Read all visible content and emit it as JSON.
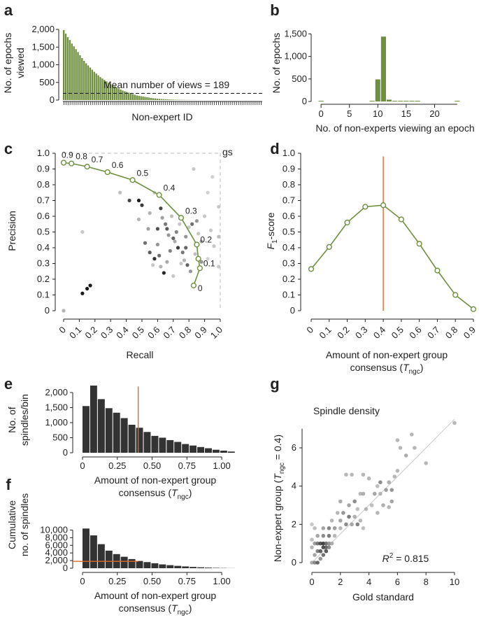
{
  "colors": {
    "green": "#6e8f3d",
    "green_light": "#8fad54",
    "bar_dark": "#333333",
    "orange": "#e0672a"
  },
  "chart_data": [
    {
      "panel": "a",
      "type": "bar",
      "ylabel_lines": [
        "No. of epochs",
        "viewed"
      ],
      "xlabel": "Non-expert ID",
      "yticks": [
        0,
        500,
        1000,
        1500,
        2000
      ],
      "ytick_labels": [
        "0",
        "500",
        "1,000",
        "1,500",
        "2,000"
      ],
      "ylim": [
        0,
        2100
      ],
      "values": [
        1980,
        1880,
        1780,
        1700,
        1600,
        1520,
        1440,
        1360,
        1270,
        1190,
        1110,
        1040,
        980,
        920,
        860,
        800,
        750,
        700,
        650,
        610,
        570,
        530,
        490,
        450,
        420,
        390,
        360,
        330,
        300,
        270,
        250,
        230,
        210,
        190,
        170,
        150,
        130,
        120,
        110,
        100,
        90,
        80,
        70,
        60,
        52,
        46,
        40,
        34,
        30,
        26,
        22,
        19,
        16,
        14,
        12,
        10,
        9,
        8,
        7,
        6,
        5,
        4,
        4,
        3,
        3,
        2,
        2,
        2,
        1,
        1,
        1,
        1,
        1,
        1,
        1,
        1,
        1,
        1,
        1,
        1,
        1,
        1,
        1,
        1,
        1,
        1,
        1,
        1,
        1,
        1,
        1,
        1,
        1,
        1,
        1,
        1,
        1,
        1
      ],
      "mean": 189,
      "mean_label": "Mean number of views = 189"
    },
    {
      "panel": "b",
      "type": "bar",
      "ylabel": "No. of epochs",
      "xlabel": "No. of non-experts viewing an epoch",
      "xticks": [
        0,
        5,
        10,
        15,
        20
      ],
      "xlim": [
        -1,
        24.5
      ],
      "yticks": [
        0,
        500,
        1000,
        1500
      ],
      "ytick_labels": [
        "0",
        "500",
        "1,000",
        "1,500"
      ],
      "ylim": [
        0,
        1600
      ],
      "x": [
        0,
        1,
        2,
        3,
        4,
        5,
        6,
        7,
        8,
        9,
        10,
        11,
        12,
        13,
        14,
        15,
        16,
        17,
        18,
        19,
        20,
        21,
        22,
        23,
        24
      ],
      "values": [
        8,
        0,
        0,
        0,
        0,
        0,
        0,
        0,
        0,
        3,
        490,
        1440,
        40,
        5,
        3,
        2,
        1,
        1,
        0,
        0,
        0,
        0,
        0,
        0,
        8
      ]
    },
    {
      "panel": "c",
      "type": "scatter",
      "xlabel": "Recall",
      "ylabel": "Precision",
      "ticks": [
        0,
        0.1,
        0.2,
        0.3,
        0.4,
        0.5,
        0.6,
        0.7,
        0.8,
        0.9,
        1.0
      ],
      "tick_labels": [
        "0",
        "0.1",
        "0.2",
        "0.3",
        "0.4",
        "0.5",
        "0.6",
        "0.7",
        "0.8",
        "0.9",
        "1.0"
      ],
      "gs_label": "gs",
      "curve": {
        "recall": [
          0.0,
          0.05,
          0.15,
          0.28,
          0.44,
          0.61,
          0.75,
          0.85,
          0.86,
          0.87,
          0.83
        ],
        "precision": [
          0.94,
          0.935,
          0.915,
          0.88,
          0.83,
          0.735,
          0.59,
          0.42,
          0.33,
          0.27,
          0.16
        ],
        "labels": [
          "0.9",
          "0.8",
          "0.7",
          "0.6",
          "0.5",
          "0.4",
          "0.3",
          "0.2",
          "",
          "0.1",
          "0"
        ]
      },
      "points": [
        {
          "x": 0.0,
          "y": 0.0,
          "g": 180
        },
        {
          "x": 0.12,
          "y": 0.11,
          "g": 25
        },
        {
          "x": 0.15,
          "y": 0.14,
          "g": 25
        },
        {
          "x": 0.17,
          "y": 0.16,
          "g": 25
        },
        {
          "x": 0.12,
          "y": 0.5,
          "g": 200
        },
        {
          "x": 0.36,
          "y": 0.75,
          "g": 190
        },
        {
          "x": 0.42,
          "y": 0.7,
          "g": 70
        },
        {
          "x": 0.48,
          "y": 0.7,
          "g": 30
        },
        {
          "x": 0.5,
          "y": 0.67,
          "g": 60
        },
        {
          "x": 0.58,
          "y": 0.75,
          "g": 200
        },
        {
          "x": 0.55,
          "y": 0.62,
          "g": 180
        },
        {
          "x": 0.62,
          "y": 0.65,
          "g": 70
        },
        {
          "x": 0.63,
          "y": 0.59,
          "g": 160
        },
        {
          "x": 0.65,
          "y": 0.55,
          "g": 120
        },
        {
          "x": 0.66,
          "y": 0.52,
          "g": 90
        },
        {
          "x": 0.67,
          "y": 0.48,
          "g": 150
        },
        {
          "x": 0.69,
          "y": 0.6,
          "g": 190
        },
        {
          "x": 0.7,
          "y": 0.46,
          "g": 100
        },
        {
          "x": 0.71,
          "y": 0.44,
          "g": 170
        },
        {
          "x": 0.72,
          "y": 0.5,
          "g": 130
        },
        {
          "x": 0.73,
          "y": 0.4,
          "g": 60
        },
        {
          "x": 0.74,
          "y": 0.55,
          "g": 200
        },
        {
          "x": 0.76,
          "y": 0.37,
          "g": 120
        },
        {
          "x": 0.77,
          "y": 0.32,
          "g": 180
        },
        {
          "x": 0.78,
          "y": 0.47,
          "g": 150
        },
        {
          "x": 0.79,
          "y": 0.29,
          "g": 100
        },
        {
          "x": 0.8,
          "y": 0.53,
          "g": 200
        },
        {
          "x": 0.81,
          "y": 0.25,
          "g": 150
        },
        {
          "x": 0.82,
          "y": 0.55,
          "g": 110
        },
        {
          "x": 0.84,
          "y": 0.36,
          "g": 190
        },
        {
          "x": 0.85,
          "y": 0.57,
          "g": 150
        },
        {
          "x": 0.86,
          "y": 0.49,
          "g": 200
        },
        {
          "x": 0.88,
          "y": 0.44,
          "g": 170
        },
        {
          "x": 0.9,
          "y": 0.6,
          "g": 200
        },
        {
          "x": 0.92,
          "y": 0.33,
          "g": 210
        },
        {
          "x": 0.94,
          "y": 0.51,
          "g": 200
        },
        {
          "x": 0.96,
          "y": 0.41,
          "g": 200
        },
        {
          "x": 0.99,
          "y": 0.66,
          "g": 200
        },
        {
          "x": 0.99,
          "y": 0.47,
          "g": 190
        },
        {
          "x": 0.99,
          "y": 0.28,
          "g": 200
        },
        {
          "x": 0.52,
          "y": 0.43,
          "g": 110
        },
        {
          "x": 0.55,
          "y": 0.37,
          "g": 90
        },
        {
          "x": 0.58,
          "y": 0.33,
          "g": 50
        },
        {
          "x": 0.6,
          "y": 0.42,
          "g": 150
        },
        {
          "x": 0.62,
          "y": 0.28,
          "g": 180
        },
        {
          "x": 0.64,
          "y": 0.24,
          "g": 40
        },
        {
          "x": 0.66,
          "y": 0.31,
          "g": 170
        },
        {
          "x": 0.68,
          "y": 0.38,
          "g": 130
        },
        {
          "x": 0.7,
          "y": 0.22,
          "g": 200
        },
        {
          "x": 0.54,
          "y": 0.52,
          "g": 160
        },
        {
          "x": 0.57,
          "y": 0.29,
          "g": 200
        },
        {
          "x": 0.61,
          "y": 0.35,
          "g": 110
        },
        {
          "x": 0.48,
          "y": 0.58,
          "g": 180
        },
        {
          "x": 0.6,
          "y": 0.52,
          "g": 80
        },
        {
          "x": 0.75,
          "y": 0.3,
          "g": 200
        },
        {
          "x": 0.92,
          "y": 0.75,
          "g": 210
        },
        {
          "x": 0.83,
          "y": 0.9,
          "g": 200
        },
        {
          "x": 0.78,
          "y": 0.4,
          "g": 100
        },
        {
          "x": 0.88,
          "y": 0.31,
          "g": 150
        },
        {
          "x": 0.95,
          "y": 0.85,
          "g": 210
        }
      ]
    },
    {
      "panel": "d",
      "type": "line",
      "xlabel_lines": [
        "Amount of non-expert group",
        "consensus ("
      ],
      "ylabel": "-score",
      "x": [
        0,
        0.1,
        0.2,
        0.3,
        0.4,
        0.5,
        0.6,
        0.7,
        0.8,
        0.9
      ],
      "values": [
        0.265,
        0.405,
        0.56,
        0.66,
        0.67,
        0.58,
        0.425,
        0.255,
        0.1,
        0.01
      ],
      "xticks": [
        "0",
        "0.1",
        "0.2",
        "0.3",
        "0.4",
        "0.5",
        "0.6",
        "0.7",
        "0.8",
        "0.9"
      ],
      "yticks": [
        "0",
        "0.1",
        "0.2",
        "0.3",
        "0.4",
        "0.5",
        "0.6",
        "0.7",
        "0.8",
        "0.9",
        "1.0"
      ],
      "threshold": 0.4
    },
    {
      "panel": "e",
      "type": "bar",
      "ylabel_lines": [
        "No. of",
        "spindles/bin"
      ],
      "xlabel_lines": [
        "Amount of non-expert group",
        "consensus ("
      ],
      "values": [
        1550,
        2230,
        1780,
        1480,
        1330,
        1150,
        930,
        830,
        690,
        560,
        500,
        420,
        360,
        290,
        240,
        190,
        150,
        100,
        70,
        40
      ],
      "yticks": [
        0,
        500,
        1000,
        1500,
        2000
      ],
      "ytick_labels": [
        "0",
        "500",
        "1,000",
        "1,500",
        "2,000"
      ],
      "ylim": [
        0,
        2300
      ],
      "xticks": [
        "0",
        "0.25",
        "0.50",
        "0.75",
        "1.00"
      ],
      "threshold": 0.4
    },
    {
      "panel": "f",
      "type": "bar",
      "ylabel_lines": [
        "Cumulative",
        "no. of spindles"
      ],
      "xlabel_lines": [
        "Amount of non-expert group",
        "consensus ("
      ],
      "values": [
        10400,
        8600,
        6300,
        4600,
        3700,
        3000,
        2400,
        1900,
        1600,
        1300,
        1000,
        800,
        620,
        470,
        340,
        240,
        160,
        100,
        60,
        30
      ],
      "yticks": [
        0,
        2000,
        4000,
        6000,
        8000,
        10000
      ],
      "ytick_labels": [
        "0",
        "2,000",
        "4,000",
        "6,000",
        "8,000",
        "10,000"
      ],
      "ylim": [
        0,
        11000
      ],
      "xticks": [
        "0",
        "0.25",
        "0.50",
        "0.75",
        "1.00"
      ],
      "threshold": 0.4,
      "threshold_count": 1800
    },
    {
      "panel": "g",
      "type": "scatter",
      "title": "Spindle density",
      "xlabel": "Gold standard",
      "ylabel_parts": [
        "Non-expert group (",
        "T",
        "ngc",
        " = 0.4)"
      ],
      "r2_label": "= 0.815",
      "xticks": [
        "0",
        "2",
        "4",
        "6",
        "8",
        "10"
      ],
      "yticks": [
        "0",
        "2",
        "4",
        "6"
      ],
      "xlim": [
        -0.3,
        10.5
      ],
      "ylim": [
        -0.3,
        7.7
      ],
      "points": [
        [
          0,
          0,
          160
        ],
        [
          0.2,
          0,
          120
        ],
        [
          0.4,
          0,
          80
        ],
        [
          0.6,
          0.2,
          130
        ],
        [
          0.8,
          0.4,
          90
        ],
        [
          1,
          0.6,
          60
        ],
        [
          0.2,
          0.4,
          150
        ],
        [
          0.4,
          0.6,
          110
        ],
        [
          0.6,
          0.6,
          70
        ],
        [
          0.8,
          0.8,
          50
        ],
        [
          1,
          0.8,
          80
        ],
        [
          1.2,
          0.8,
          120
        ],
        [
          0,
          0.8,
          170
        ],
        [
          0.2,
          1,
          140
        ],
        [
          0.4,
          1,
          100
        ],
        [
          0.6,
          1,
          60
        ],
        [
          0.8,
          1,
          40
        ],
        [
          1,
          1,
          90
        ],
        [
          1.2,
          1,
          130
        ],
        [
          1.4,
          1,
          160
        ],
        [
          0,
          1.2,
          180
        ],
        [
          0.4,
          1.4,
          150
        ],
        [
          0.8,
          1.4,
          120
        ],
        [
          1.2,
          1.4,
          100
        ],
        [
          1.6,
          1.4,
          170
        ],
        [
          0.2,
          1.8,
          180
        ],
        [
          0.8,
          1.8,
          150
        ],
        [
          1.2,
          1.8,
          110
        ],
        [
          1.6,
          1.8,
          140
        ],
        [
          2,
          1.8,
          170
        ],
        [
          0,
          2,
          190
        ],
        [
          1.4,
          2.2,
          170
        ],
        [
          2,
          2.2,
          150
        ],
        [
          2.4,
          2,
          120
        ],
        [
          2.8,
          2,
          150
        ],
        [
          3.2,
          2,
          110
        ],
        [
          1.8,
          2.6,
          170
        ],
        [
          2.2,
          2.6,
          130
        ],
        [
          2.6,
          2.4,
          100
        ],
        [
          3,
          2.4,
          160
        ],
        [
          3.4,
          2.2,
          170
        ],
        [
          3.6,
          1.8,
          180
        ],
        [
          2,
          3.2,
          160
        ],
        [
          2.6,
          3,
          150
        ],
        [
          3,
          3.2,
          120
        ],
        [
          3.2,
          2.8,
          180
        ],
        [
          3.8,
          2.8,
          170
        ],
        [
          4.2,
          3,
          180
        ],
        [
          2.4,
          4.6,
          170
        ],
        [
          2.8,
          4.6,
          170
        ],
        [
          3.6,
          3.6,
          160
        ],
        [
          4.4,
          3.6,
          150
        ],
        [
          4.8,
          3.6,
          170
        ],
        [
          5.2,
          3.8,
          140
        ],
        [
          4.8,
          4.2,
          120
        ],
        [
          5.4,
          4.2,
          160
        ],
        [
          5.8,
          4.5,
          170
        ],
        [
          5,
          3,
          160
        ],
        [
          5.6,
          3.2,
          150
        ],
        [
          4.6,
          2.6,
          170
        ],
        [
          6,
          4.8,
          170
        ],
        [
          6.6,
          5.6,
          160
        ],
        [
          6,
          6.4,
          170
        ],
        [
          7,
          6.7,
          170
        ],
        [
          7.2,
          6,
          170
        ],
        [
          8,
          5.2,
          170
        ],
        [
          10,
          7.3,
          170
        ],
        [
          5.6,
          3.8,
          130
        ],
        [
          4,
          4.4,
          170
        ],
        [
          3.6,
          4.6,
          170
        ],
        [
          6.2,
          6,
          170
        ],
        [
          3.4,
          3.6,
          170
        ],
        [
          4.6,
          4,
          180
        ],
        [
          5.4,
          2.9,
          170
        ]
      ],
      "fit": [
        [
          0,
          0
        ],
        [
          10,
          7.5
        ]
      ]
    }
  ]
}
